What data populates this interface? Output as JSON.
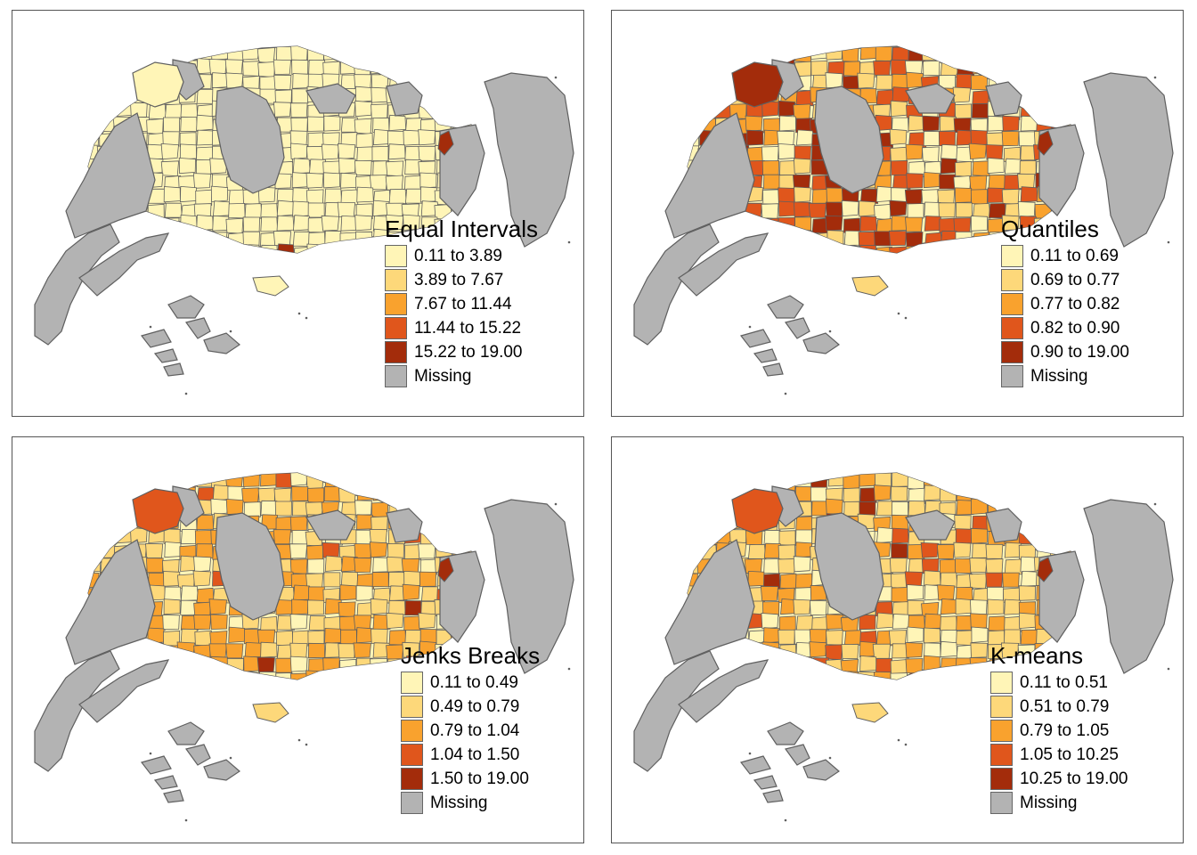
{
  "panels": [
    {
      "title": "Equal Intervals",
      "classes": [
        {
          "label": "0.11 to 3.89",
          "color": "#FFF5B7"
        },
        {
          "label": "3.89 to 7.67",
          "color": "#FDD87A"
        },
        {
          "label": "7.67 to 11.44",
          "color": "#F9A22E"
        },
        {
          "label": "11.44 to 15.22",
          "color": "#E0561C"
        },
        {
          "label": "15.22 to 19.00",
          "color": "#A32C0B"
        },
        {
          "label": "Missing",
          "color": "#B3B3B3"
        }
      ]
    },
    {
      "title": "Quantiles",
      "classes": [
        {
          "label": "0.11 to 0.69",
          "color": "#FFF5B7"
        },
        {
          "label": "0.69 to 0.77",
          "color": "#FDD87A"
        },
        {
          "label": "0.77 to 0.82",
          "color": "#F9A22E"
        },
        {
          "label": "0.82 to 0.90",
          "color": "#E0561C"
        },
        {
          "label": "0.90 to 19.00",
          "color": "#A32C0B"
        },
        {
          "label": "Missing",
          "color": "#B3B3B3"
        }
      ]
    },
    {
      "title": "Jenks Breaks",
      "classes": [
        {
          "label": "0.11 to 0.49",
          "color": "#FFF5B7"
        },
        {
          "label": "0.49 to 0.79",
          "color": "#FDD87A"
        },
        {
          "label": "0.79 to 1.04",
          "color": "#F9A22E"
        },
        {
          "label": "1.04 to 1.50",
          "color": "#E0561C"
        },
        {
          "label": "1.50 to 19.00",
          "color": "#A32C0B"
        },
        {
          "label": "Missing",
          "color": "#B3B3B3"
        }
      ]
    },
    {
      "title": "K-means",
      "classes": [
        {
          "label": "0.11 to 0.51",
          "color": "#FFF5B7"
        },
        {
          "label": "0.51 to 0.79",
          "color": "#FDD87A"
        },
        {
          "label": "0.79 to 1.05",
          "color": "#F9A22E"
        },
        {
          "label": "1.05 to 10.25",
          "color": "#E0561C"
        },
        {
          "label": "10.25 to 19.00",
          "color": "#A32C0B"
        },
        {
          "label": "Missing",
          "color": "#B3B3B3"
        }
      ]
    }
  ]
}
